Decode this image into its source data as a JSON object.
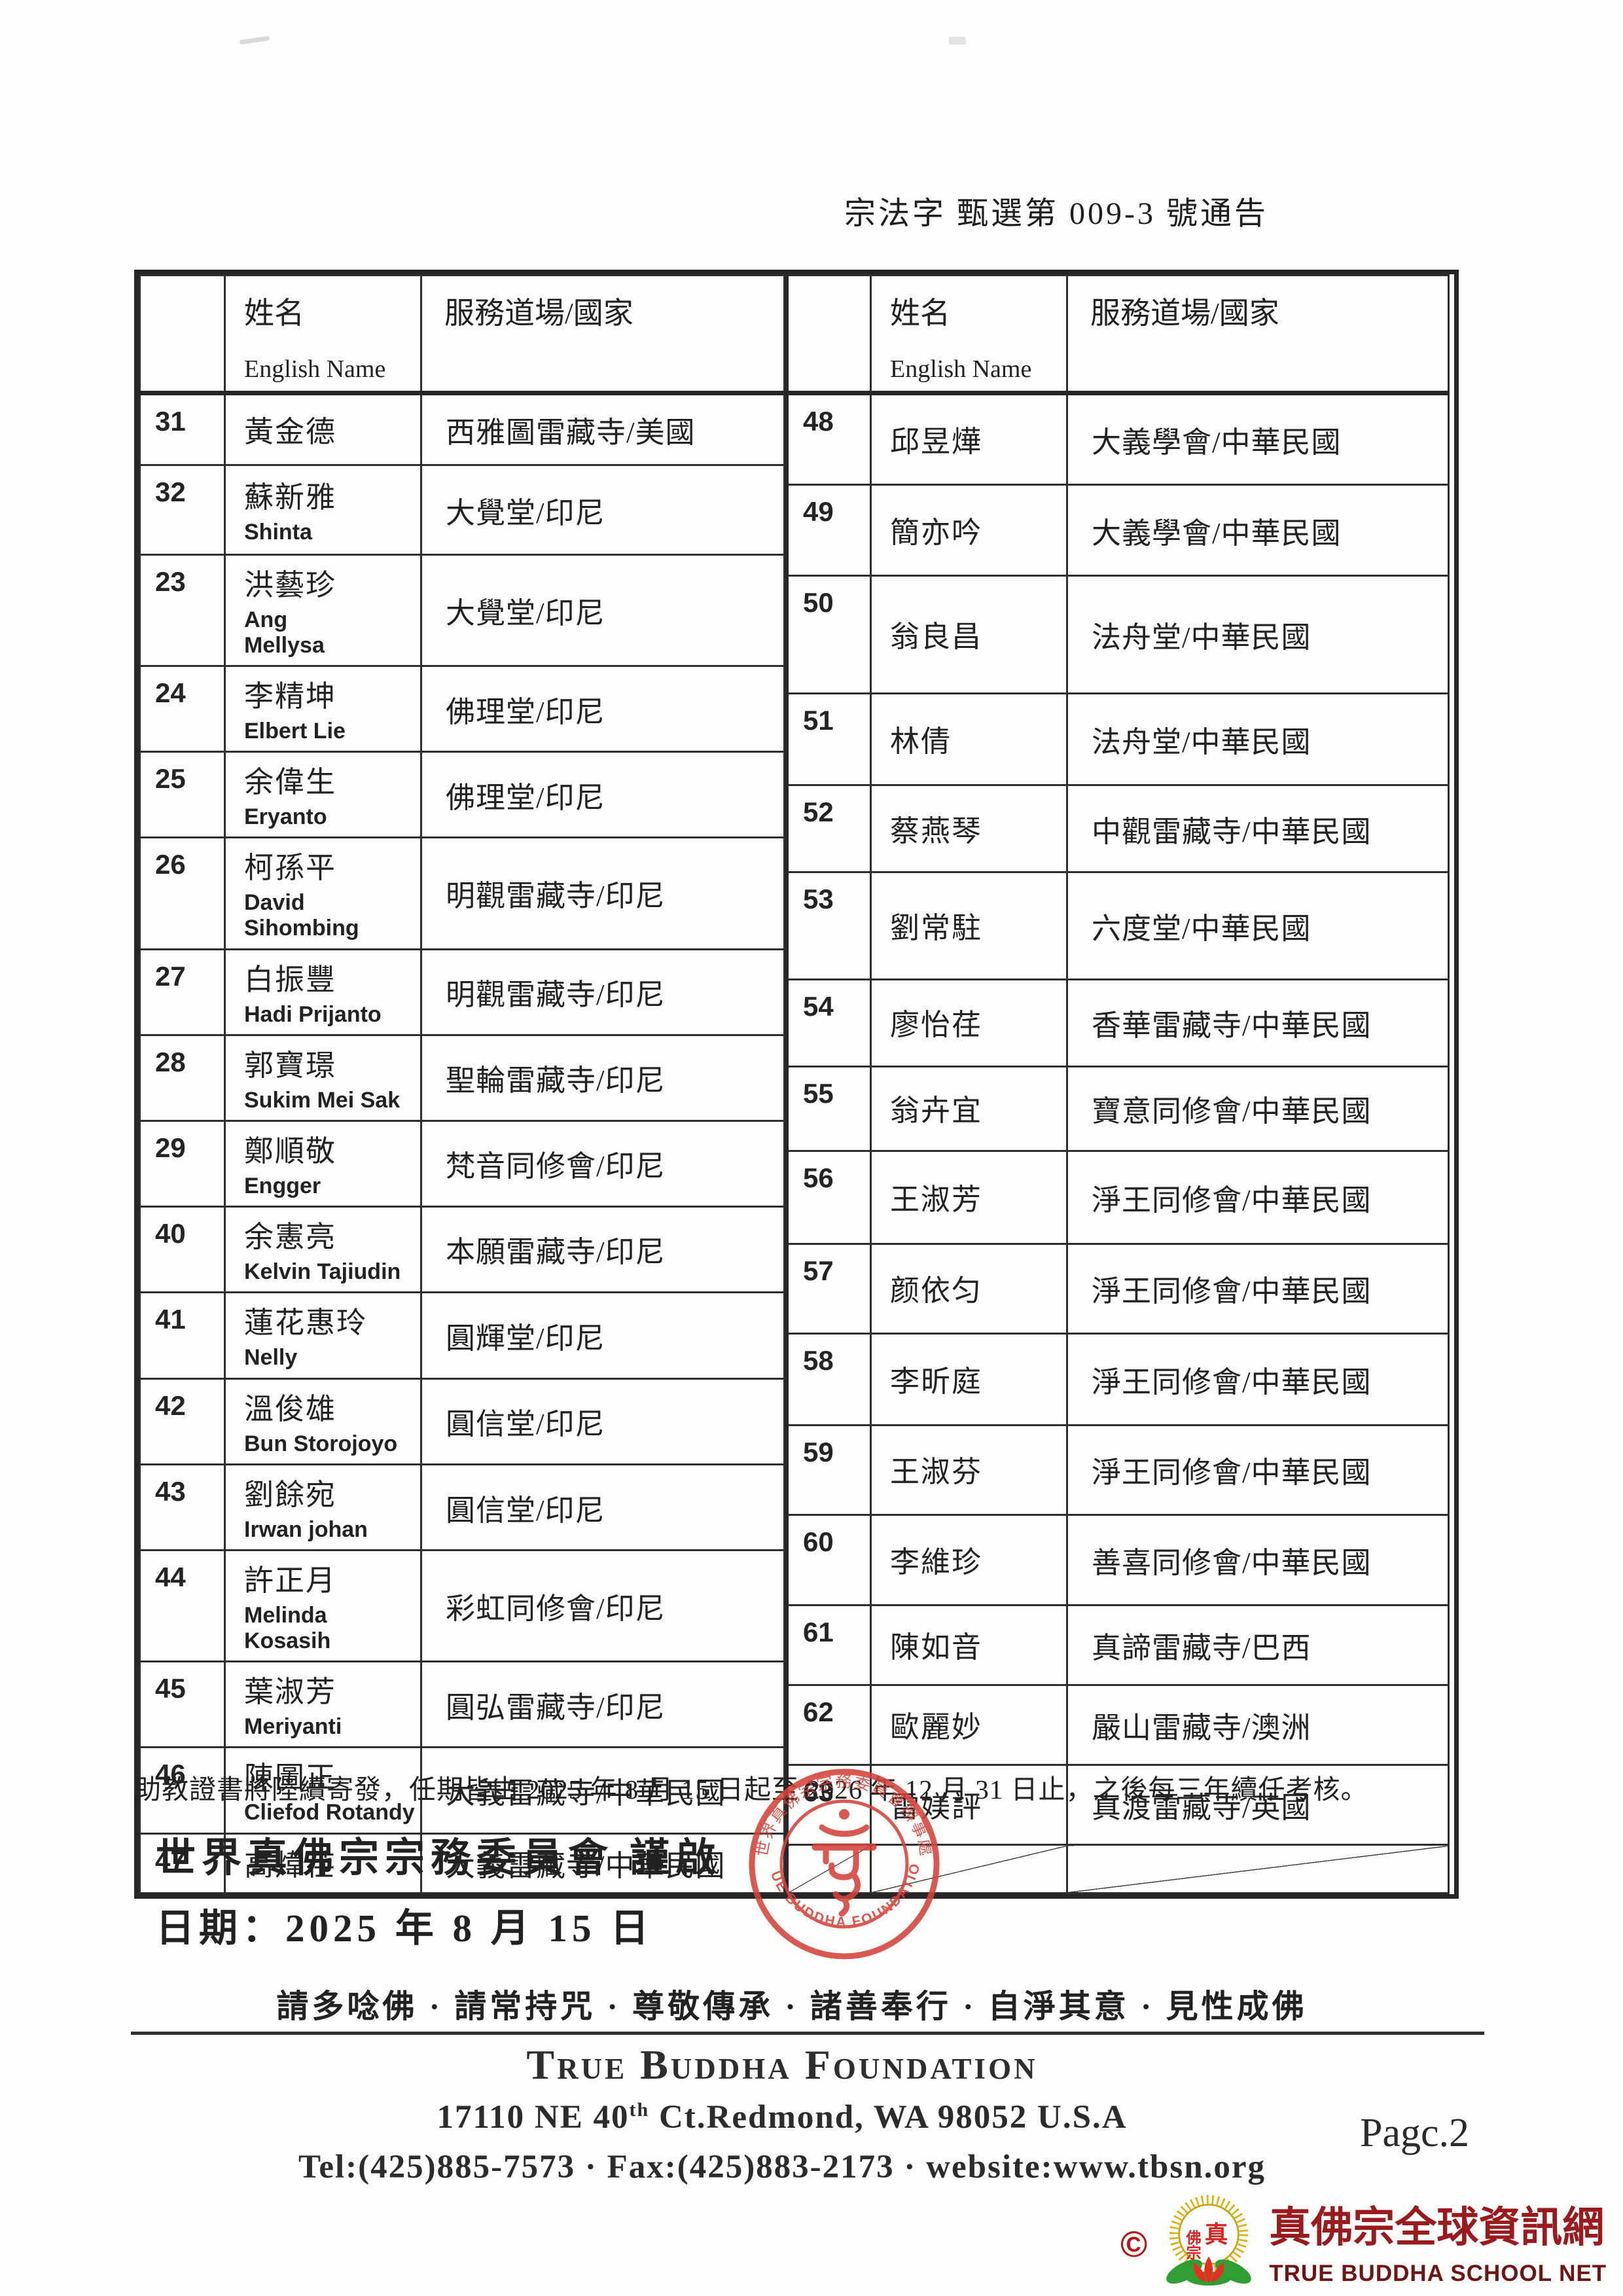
{
  "page": {
    "notice_title": "宗法字 甄選第 009-3 號通告",
    "note": "助教證書將陸續寄發，任期皆由 2025 年 8 月 15 日起至 2026 年 12 月 31 日止，之後每三年續任考核。",
    "closing": "世界真佛宗宗務委員會 謹啟",
    "date_line": "日期：2025 年 8 月 15 日",
    "motto": "請多唸佛 · 請常持咒 · 尊敬傳承 · 諸善奉行 · 自淨其意 · 見性成佛",
    "page_number": "Pagc.2"
  },
  "table": {
    "headers": {
      "name_cn": "姓名",
      "name_en": "English Name",
      "temple": "服務道場/國家"
    },
    "left_rows": [
      {
        "no": "31",
        "name": "黃金德",
        "english": "",
        "temple": "西雅圖雷藏寺/美國"
      },
      {
        "no": "32",
        "name": "蘇新雅",
        "english": "Shinta",
        "temple": "大覺堂/印尼"
      },
      {
        "no": "23",
        "name": "洪藝珍",
        "english": "Ang\nMellysa",
        "temple": "大覺堂/印尼"
      },
      {
        "no": "24",
        "name": "李精坤",
        "english": "Elbert Lie",
        "temple": "佛理堂/印尼"
      },
      {
        "no": "25",
        "name": "余偉生",
        "english": "Eryanto",
        "temple": "佛理堂/印尼"
      },
      {
        "no": "26",
        "name": "柯孫平",
        "english": "David\nSihombing",
        "temple": "明觀雷藏寺/印尼"
      },
      {
        "no": "27",
        "name": "白振豐",
        "english": "Hadi Prijanto",
        "temple": "明觀雷藏寺/印尼"
      },
      {
        "no": "28",
        "name": "郭寶璟",
        "english": "Sukim Mei Sak",
        "temple": "聖輪雷藏寺/印尼"
      },
      {
        "no": "29",
        "name": "鄭順敬",
        "english": "Engger",
        "temple": "梵音同修會/印尼"
      },
      {
        "no": "40",
        "name": "余憲亮",
        "english": "Kelvin Tajiudin",
        "temple": "本願雷藏寺/印尼"
      },
      {
        "no": "41",
        "name": "蓮花惠玲",
        "english": "Nelly",
        "temple": "圓輝堂/印尼"
      },
      {
        "no": "42",
        "name": "溫俊雄",
        "english": "Bun Storojoyo",
        "temple": "圓信堂/印尼"
      },
      {
        "no": "43",
        "name": "劉餘宛",
        "english": "Irwan johan",
        "temple": "圓信堂/印尼"
      },
      {
        "no": "44",
        "name": "許正月",
        "english": "Melinda Kosasih",
        "temple": "彩虹同修會/印尼"
      },
      {
        "no": "45",
        "name": "葉淑芳",
        "english": "Meriyanti",
        "temple": "圓弘雷藏寺/印尼"
      },
      {
        "no": "46",
        "name": "陳圖正",
        "english": "Cliefod Rotandy",
        "temple": "大義雷藏寺/中華民國"
      },
      {
        "no": "47",
        "name": "高煒荏",
        "english": "",
        "temple": "大義雷藏寺/中華民國"
      }
    ],
    "right_rows": [
      {
        "no": "48",
        "name": "邱昱燁",
        "english": "",
        "temple": "大義學會/中華民國"
      },
      {
        "no": "49",
        "name": "簡亦吟",
        "english": "",
        "temple": "大義學會/中華民國"
      },
      {
        "no": "50",
        "name": "翁良昌",
        "english": "",
        "temple": "法舟堂/中華民國"
      },
      {
        "no": "51",
        "name": "林倩",
        "english": "",
        "temple": "法舟堂/中華民國"
      },
      {
        "no": "52",
        "name": "蔡燕琴",
        "english": "",
        "temple": "中觀雷藏寺/中華民國"
      },
      {
        "no": "53",
        "name": "劉常駐",
        "english": "",
        "temple": "六度堂/中華民國"
      },
      {
        "no": "54",
        "name": "廖怡荏",
        "english": "",
        "temple": "香華雷藏寺/中華民國"
      },
      {
        "no": "55",
        "name": "翁卉宜",
        "english": "",
        "temple": "寶意同修會/中華民國"
      },
      {
        "no": "56",
        "name": "王淑芳",
        "english": "",
        "temple": "淨王同修會/中華民國"
      },
      {
        "no": "57",
        "name": "颜依匀",
        "english": "",
        "temple": "淨王同修會/中華民國"
      },
      {
        "no": "58",
        "name": "李昕庭",
        "english": "",
        "temple": "淨王同修會/中華民國"
      },
      {
        "no": "59",
        "name": "王淑芬",
        "english": "",
        "temple": "淨王同修會/中華民國"
      },
      {
        "no": "60",
        "name": "李維珍",
        "english": "",
        "temple": "善喜同修會/中華民國"
      },
      {
        "no": "61",
        "name": "陳如音",
        "english": "",
        "temple": "真諦雷藏寺/巴西"
      },
      {
        "no": "62",
        "name": "歐麗妙",
        "english": "",
        "temple": "嚴山雷藏寺/澳洲"
      },
      {
        "no": "63",
        "name": "雷媄評",
        "english": "",
        "temple": "真渡雷藏寺/英國"
      },
      {
        "no": "",
        "name": "",
        "english": "",
        "temple": "",
        "slashed": true
      }
    ]
  },
  "seal": {
    "top_text": "世界真佛宗宗務委員會辦事處",
    "bottom_text": "TRUE BUDDHA FOUNDATION"
  },
  "footer": {
    "org_name": "True Buddha Foundation",
    "addr_prefix": "17110 NE 40",
    "addr_sup": "th",
    "addr_suffix": " Ct.Redmond, WA 98052 U.S.A",
    "contact": "Tel:(425)885-7573 · Fax:(425)883-2173 · website:www.tbsn.org"
  },
  "logo": {
    "copyright": "©",
    "badge_chars_right": "真",
    "badge_chars_left": "佛宗",
    "cn": "真佛宗全球資訊網",
    "en": "TRUE BUDDHA SCHOOL NET"
  }
}
